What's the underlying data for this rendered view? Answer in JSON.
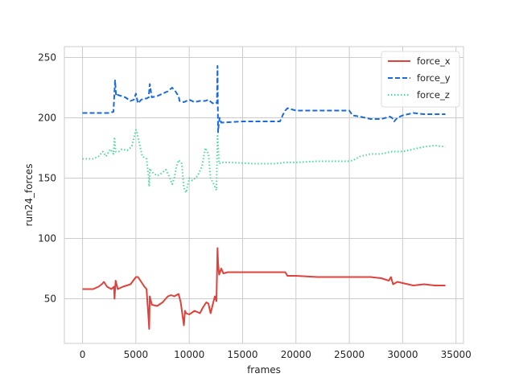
{
  "chart_data": {
    "type": "line",
    "title": "",
    "xlabel": "frames",
    "ylabel": "run24_forces",
    "xlim": [
      -1700,
      35700
    ],
    "ylim": [
      13,
      259
    ],
    "xticks": [
      0,
      5000,
      10000,
      15000,
      20000,
      25000,
      30000,
      35000
    ],
    "xtick_labels": [
      "0",
      "5000",
      "10000",
      "15000",
      "20000",
      "25000",
      "30000",
      "35000"
    ],
    "yticks": [
      50,
      100,
      150,
      200,
      250
    ],
    "ytick_labels": [
      "50",
      "100",
      "150",
      "200",
      "250"
    ],
    "grid": true,
    "legend_position": "top-right",
    "series": [
      {
        "name": "force_x",
        "color": "#e0413b",
        "style": "solid",
        "x": [
          0,
          1000,
          1500,
          1800,
          2000,
          2300,
          2700,
          2950,
          3000,
          3100,
          3300,
          3800,
          4500,
          5000,
          5200,
          5500,
          5800,
          6000,
          6200,
          6250,
          6300,
          6500,
          7000,
          7500,
          8000,
          8300,
          8600,
          9000,
          9200,
          9500,
          9600,
          9700,
          10000,
          10500,
          11000,
          11300,
          11600,
          11800,
          12000,
          12200,
          12400,
          12550,
          12650,
          12700,
          12800,
          13000,
          13200,
          13600,
          15000,
          17000,
          19000,
          19200,
          20000,
          22000,
          25000,
          26000,
          27000,
          28000,
          28700,
          28900,
          29100,
          29500,
          30000,
          31000,
          32000,
          33000,
          34000
        ],
        "y": [
          58,
          58,
          60,
          62,
          64,
          60,
          58,
          60,
          50,
          65,
          58,
          60,
          62,
          68,
          68,
          64,
          60,
          58,
          32,
          25,
          52,
          45,
          44,
          47,
          52,
          53,
          52,
          54,
          47,
          28,
          40,
          38,
          37,
          40,
          38,
          43,
          47,
          46,
          38,
          45,
          52,
          48,
          92,
          80,
          70,
          75,
          71,
          72,
          72,
          72,
          72,
          69,
          69,
          68,
          68,
          68,
          68,
          67,
          65,
          68,
          62,
          64,
          63,
          61,
          62,
          61,
          61
        ]
      },
      {
        "name": "force_y",
        "color": "#1a6ae0",
        "style": "dashed",
        "x": [
          0,
          1500,
          2500,
          2900,
          3050,
          3150,
          3300,
          4000,
          4500,
          4800,
          5000,
          5200,
          5500,
          5800,
          6000,
          6200,
          6300,
          6500,
          7000,
          7500,
          8000,
          8400,
          8700,
          9000,
          9100,
          9500,
          10000,
          10500,
          11000,
          11500,
          11800,
          12200,
          12500,
          12600,
          12650,
          12700,
          12750,
          12850,
          13000,
          15000,
          17000,
          18500,
          18800,
          19000,
          19200,
          20000,
          21000,
          22000,
          23000,
          24000,
          25000,
          25300,
          26000,
          27000,
          28000,
          28800,
          29000,
          29200,
          29500,
          30000,
          31000,
          32000,
          33000,
          34000
        ],
        "y": [
          204,
          204,
          204,
          205,
          231,
          218,
          219,
          217,
          214,
          215,
          220,
          212,
          215,
          216,
          216,
          217,
          228,
          217,
          218,
          220,
          222,
          225,
          222,
          218,
          214,
          213,
          215,
          213,
          214,
          214,
          215,
          212,
          213,
          212,
          243,
          188,
          193,
          200,
          196,
          197,
          197,
          197,
          203,
          206,
          208,
          206,
          206,
          206,
          206,
          206,
          206,
          202,
          201,
          199,
          199,
          201,
          200,
          197,
          200,
          202,
          204,
          203,
          203,
          203
        ]
      },
      {
        "name": "force_z",
        "color": "#4dd9a0",
        "style": "dotted",
        "x": [
          0,
          1000,
          1500,
          1900,
          2200,
          2600,
          2900,
          3000,
          3100,
          3400,
          3700,
          4200,
          4600,
          5000,
          5100,
          5300,
          5600,
          6000,
          6200,
          6250,
          6300,
          6500,
          7000,
          7400,
          7800,
          8200,
          8400,
          8600,
          8800,
          9000,
          9300,
          9500,
          9700,
          10000,
          10300,
          10800,
          11200,
          11500,
          11800,
          12000,
          12300,
          12550,
          12650,
          12700,
          12800,
          13000,
          14000,
          16000,
          18000,
          19000,
          20000,
          22000,
          24000,
          25000,
          25400,
          26000,
          27000,
          28000,
          29000,
          30000,
          31000,
          32000,
          33000,
          34000
        ],
        "y": [
          166,
          166,
          168,
          172,
          168,
          174,
          170,
          184,
          172,
          172,
          174,
          173,
          176,
          190,
          188,
          180,
          168,
          166,
          150,
          143,
          158,
          155,
          152,
          154,
          157,
          150,
          145,
          150,
          160,
          165,
          162,
          142,
          138,
          150,
          148,
          152,
          160,
          175,
          170,
          150,
          145,
          140,
          185,
          178,
          162,
          163,
          163,
          162,
          162,
          163,
          163,
          164,
          164,
          164,
          165,
          168,
          170,
          170,
          172,
          172,
          174,
          176,
          177,
          176
        ]
      }
    ]
  }
}
